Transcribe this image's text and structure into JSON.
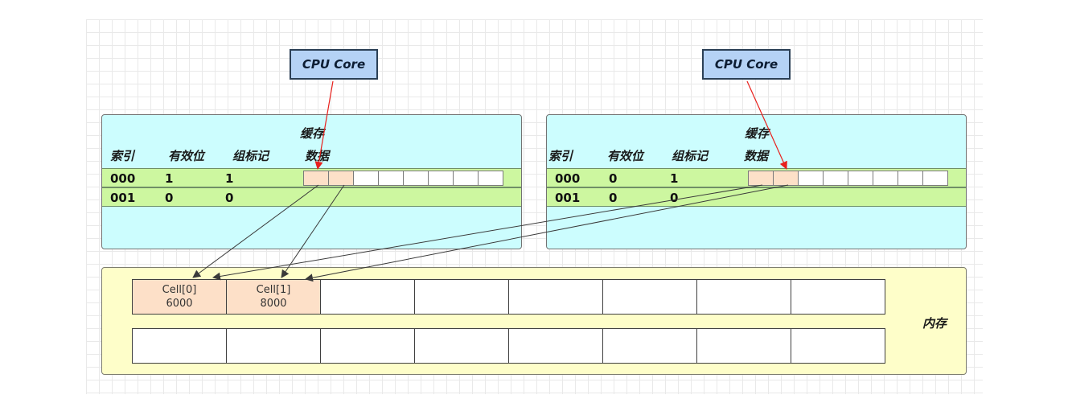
{
  "cores": [
    {
      "label": "CPU Core"
    },
    {
      "label": "CPU Core"
    }
  ],
  "caches": [
    {
      "title": "缓存",
      "headers": {
        "index": "索引",
        "valid": "有效位",
        "tag": "组标记",
        "data": "数据"
      },
      "rows": [
        {
          "index": "000",
          "valid": "1",
          "tag": "1"
        },
        {
          "index": "001",
          "valid": "0",
          "tag": "0"
        }
      ]
    },
    {
      "title": "缓存",
      "headers": {
        "index": "索引",
        "valid": "有效位",
        "tag": "组标记",
        "data": "数据"
      },
      "rows": [
        {
          "index": "000",
          "valid": "0",
          "tag": "1"
        },
        {
          "index": "001",
          "valid": "0",
          "tag": "0"
        }
      ]
    }
  ],
  "memory": {
    "label": "内存",
    "cells": [
      {
        "name": "Cell[0]",
        "value": "6000"
      },
      {
        "name": "Cell[1]",
        "value": "8000"
      }
    ]
  },
  "colors": {
    "cache_bg": "#ccfdfe",
    "row_bg": "#cdf7a0",
    "memory_bg": "#fefec9",
    "highlight": "#fde0c8",
    "core_bg": "#b5d2f5",
    "core_arrow": "#e8201c",
    "mem_arrow": "#3a3a3a"
  }
}
